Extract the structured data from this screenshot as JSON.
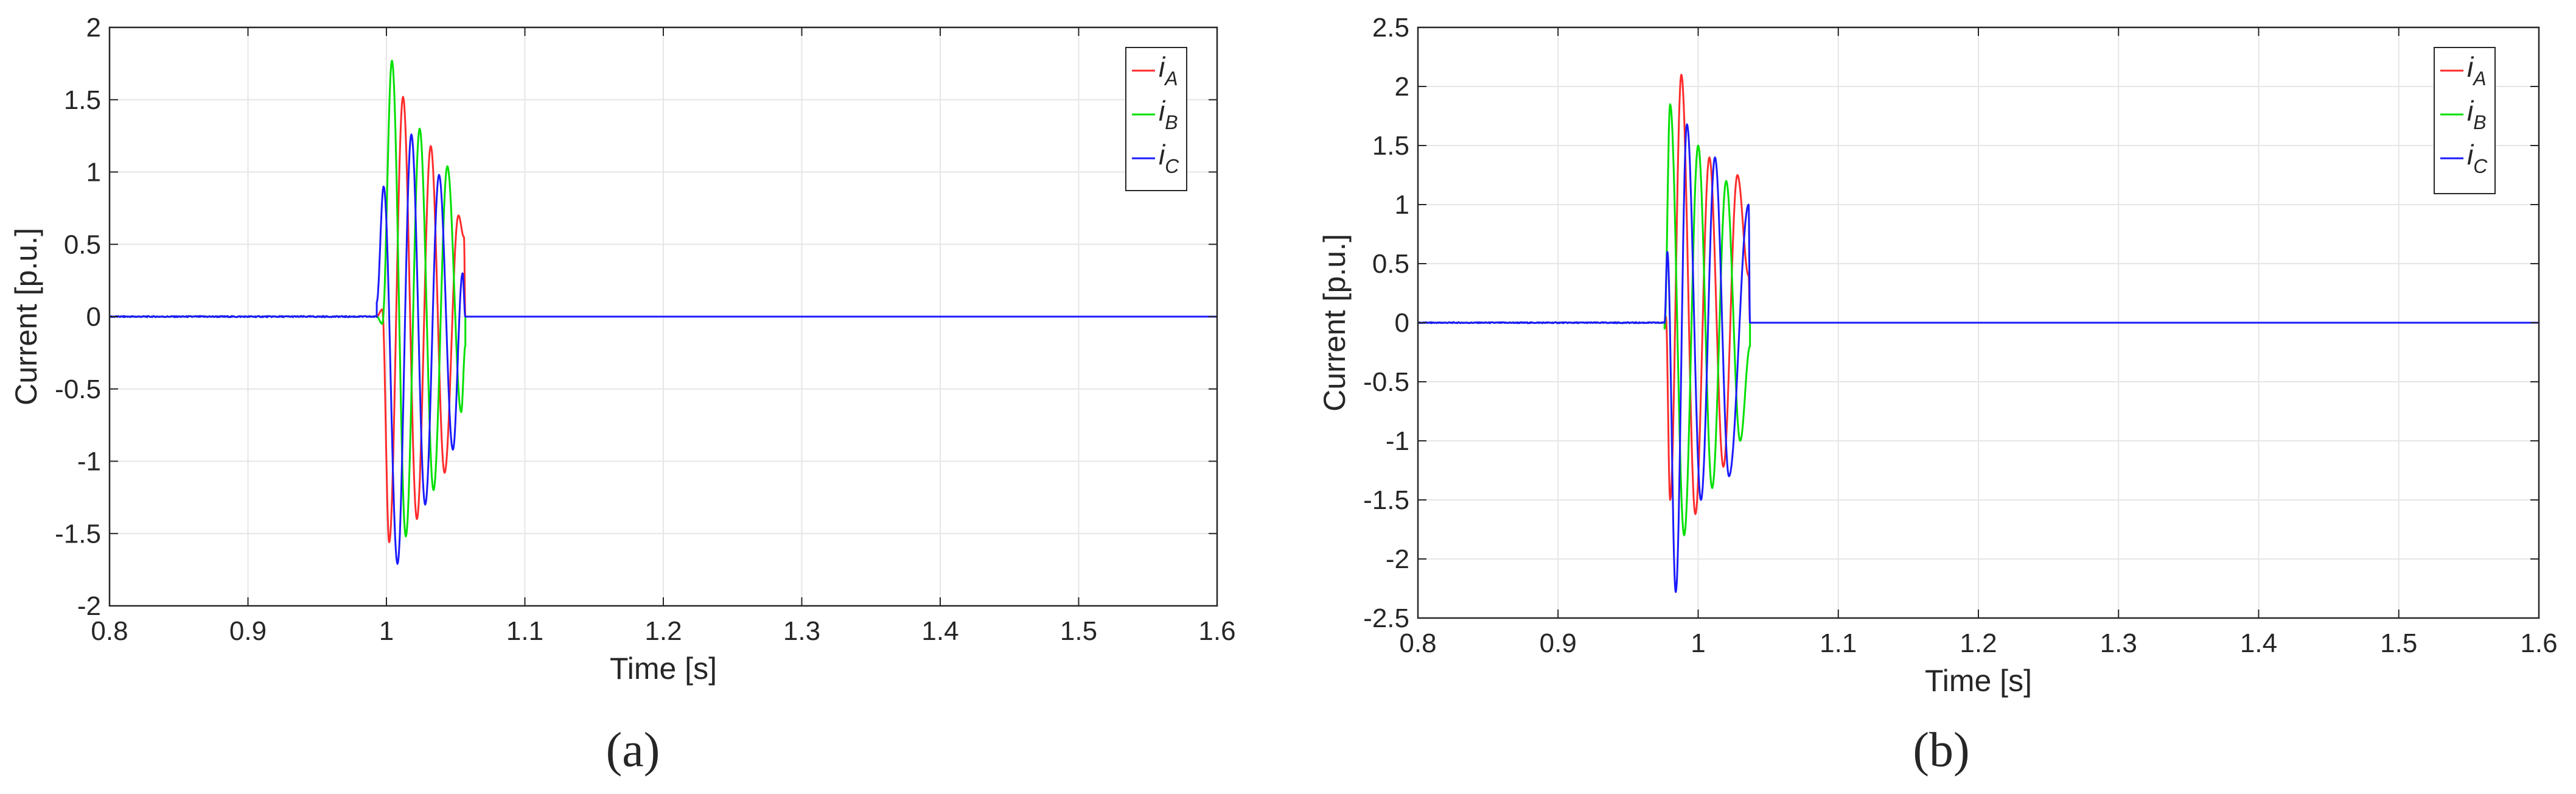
{
  "chart_data": [
    {
      "type": "line",
      "panel_label": "(a)",
      "xlabel": "Time [s]",
      "ylabel": "Current [p.u.]",
      "xlim": [
        0.8,
        1.6
      ],
      "ylim": [
        -2,
        2
      ],
      "xticks": [
        "0.8",
        "0.9",
        "1",
        "1.1",
        "1.2",
        "1.3",
        "1.4",
        "1.5",
        "1.6"
      ],
      "yticks": [
        "-2",
        "-1.5",
        "-1",
        "-0.5",
        "0",
        "0.5",
        "1",
        "1.5",
        "2"
      ],
      "grid": true,
      "legend_position": "top-right",
      "fault": {
        "start": 0.993,
        "end": 1.057,
        "freq_hz": 50
      },
      "series": [
        {
          "name": "iA",
          "main": "i",
          "sub": "A",
          "color": "#ff2b2b",
          "peaks": [
            [
              0.997,
              0.05
            ],
            [
              1.002,
              -1.56
            ],
            [
              1.012,
              1.52
            ],
            [
              1.022,
              -1.4
            ],
            [
              1.032,
              1.18
            ],
            [
              1.042,
              -1.08
            ],
            [
              1.052,
              0.7
            ],
            [
              1.056,
              0.55
            ]
          ]
        },
        {
          "name": "iB",
          "main": "i",
          "sub": "B",
          "color": "#00e000",
          "peaks": [
            [
              0.997,
              -0.05
            ],
            [
              1.004,
              1.77
            ],
            [
              1.014,
              -1.52
            ],
            [
              1.024,
              1.3
            ],
            [
              1.034,
              -1.2
            ],
            [
              1.044,
              1.04
            ],
            [
              1.054,
              -0.66
            ],
            [
              1.057,
              -0.2
            ]
          ]
        },
        {
          "name": "iC",
          "main": "i",
          "sub": "C",
          "color": "#1a1aff",
          "peaks": [
            [
              0.993,
              0.1
            ],
            [
              0.998,
              0.9
            ],
            [
              1.008,
              -1.71
            ],
            [
              1.018,
              1.26
            ],
            [
              1.028,
              -1.3
            ],
            [
              1.038,
              0.98
            ],
            [
              1.048,
              -0.92
            ],
            [
              1.055,
              0.3
            ]
          ]
        }
      ]
    },
    {
      "type": "line",
      "panel_label": "(b)",
      "xlabel": "Time [s]",
      "ylabel": "Current [p.u.]",
      "xlim": [
        0.8,
        1.6
      ],
      "ylim": [
        -2.5,
        2.5
      ],
      "xticks": [
        "0.8",
        "0.9",
        "1",
        "1.1",
        "1.2",
        "1.3",
        "1.4",
        "1.5",
        "1.6"
      ],
      "yticks": [
        "-2.5",
        "-2",
        "-1.5",
        "-1",
        "-0.5",
        "0",
        "0.5",
        "1",
        "1.5",
        "2",
        "2.5"
      ],
      "grid": true,
      "legend_position": "top-right",
      "fault": {
        "start": 0.976,
        "end": 1.037,
        "freq_hz": 50
      },
      "series": [
        {
          "name": "iA",
          "main": "i",
          "sub": "A",
          "color": "#ff2b2b",
          "peaks": [
            [
              0.977,
              0.05
            ],
            [
              0.98,
              -1.5
            ],
            [
              0.988,
              2.1
            ],
            [
              0.998,
              -1.62
            ],
            [
              1.008,
              1.4
            ],
            [
              1.018,
              -1.22
            ],
            [
              1.028,
              1.25
            ],
            [
              1.036,
              0.4
            ]
          ]
        },
        {
          "name": "iB",
          "main": "i",
          "sub": "B",
          "color": "#00e000",
          "peaks": [
            [
              0.976,
              -0.05
            ],
            [
              0.98,
              1.85
            ],
            [
              0.99,
              -1.8
            ],
            [
              1.0,
              1.5
            ],
            [
              1.01,
              -1.4
            ],
            [
              1.02,
              1.2
            ],
            [
              1.03,
              -1.0
            ],
            [
              1.037,
              -0.2
            ]
          ]
        },
        {
          "name": "iC",
          "main": "i",
          "sub": "C",
          "color": "#1a1aff",
          "peaks": [
            [
              0.976,
              0.0
            ],
            [
              0.978,
              0.6
            ],
            [
              0.984,
              -2.28
            ],
            [
              0.992,
              1.68
            ],
            [
              1.002,
              -1.5
            ],
            [
              1.012,
              1.4
            ],
            [
              1.022,
              -1.3
            ],
            [
              1.036,
              1.0
            ]
          ]
        }
      ]
    }
  ]
}
